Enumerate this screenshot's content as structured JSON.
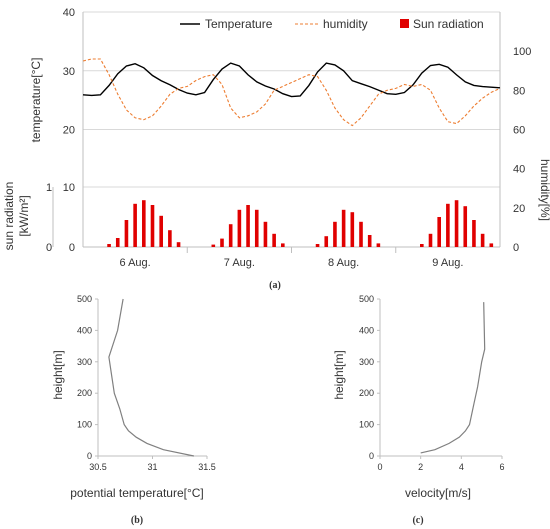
{
  "captions": {
    "a": "(a)",
    "b": "(b)",
    "c": "(c)"
  },
  "colors": {
    "temperature": "#000000",
    "humidity": "#ED7D31",
    "radiation": "#E00000",
    "profile": "#808080",
    "grid": "#d9d9d9",
    "axis": "#bfbfbf"
  },
  "chart_data": [
    {
      "type": "line",
      "panel": "(a)",
      "xlabel": "",
      "x_tick_labels": [
        "6 Aug.",
        "7 Aug.",
        "8 Aug.",
        "9 Aug."
      ],
      "x_hours": [
        0,
        2,
        4,
        6,
        8,
        10,
        12,
        14,
        16,
        18,
        20,
        22,
        24,
        26,
        28,
        30,
        32,
        34,
        36,
        38,
        40,
        42,
        44,
        46,
        48,
        50,
        52,
        54,
        56,
        58,
        60,
        62,
        64,
        66,
        68,
        70,
        72,
        74,
        76,
        78,
        80,
        82,
        84,
        86,
        88,
        90,
        92,
        94,
        96
      ],
      "legend": [
        "Temperature",
        "humidity",
        "Sun radiation"
      ],
      "legend_position": "top",
      "left_axis": {
        "label": "temperature[°C]",
        "ylim": [
          0,
          40
        ],
        "ticks": [
          20,
          30,
          40
        ]
      },
      "right_axis": {
        "label": "humidity[%]",
        "ylim": [
          0,
          120
        ],
        "ticks": [
          0,
          20,
          40,
          60,
          80,
          100
        ]
      },
      "radiation_axis": {
        "label": "sun radiation [kW/m²]",
        "ylim": [
          0,
          1
        ],
        "ticks": [
          0,
          1
        ]
      },
      "series": [
        {
          "name": "Temperature",
          "axis": "left",
          "values": [
            25.9,
            25.8,
            25.9,
            27.5,
            29.5,
            30.8,
            31.2,
            30.5,
            29.2,
            28.3,
            27.6,
            26.8,
            26.2,
            25.9,
            26.3,
            28.5,
            30.3,
            31.3,
            30.8,
            29.3,
            28.1,
            27.4,
            26.9,
            26.1,
            25.6,
            25.7,
            27.5,
            29.8,
            31.3,
            31.0,
            30.0,
            28.3,
            27.8,
            27.3,
            26.7,
            26.1,
            26.0,
            26.3,
            27.6,
            29.6,
            30.9,
            31.1,
            30.6,
            29.3,
            28.1,
            27.5,
            27.3,
            27.2,
            27.1
          ]
        },
        {
          "name": "humidity",
          "axis": "right",
          "values": [
            95,
            96,
            96,
            88,
            78,
            70,
            66,
            65,
            67,
            72,
            78,
            81,
            82,
            85,
            87,
            88,
            83,
            71,
            66,
            67,
            69,
            73,
            80,
            82,
            84,
            86,
            88,
            87,
            80,
            71,
            65,
            62,
            66,
            72,
            78,
            80,
            81,
            83,
            82,
            83,
            80,
            71,
            64,
            63,
            67,
            72,
            76,
            79,
            81
          ]
        },
        {
          "name": "Sun radiation",
          "axis": "radiation",
          "type": "bar",
          "values": [
            0,
            0,
            0,
            0.05,
            0.15,
            0.45,
            0.72,
            0.78,
            0.7,
            0.52,
            0.28,
            0.08,
            0,
            0,
            0,
            0.04,
            0.14,
            0.38,
            0.62,
            0.7,
            0.62,
            0.42,
            0.22,
            0.06,
            0,
            0,
            0,
            0.05,
            0.18,
            0.42,
            0.62,
            0.58,
            0.42,
            0.2,
            0.06,
            0,
            0,
            0,
            0,
            0.05,
            0.22,
            0.5,
            0.72,
            0.78,
            0.68,
            0.45,
            0.22,
            0.06,
            0
          ]
        }
      ]
    },
    {
      "type": "line",
      "panel": "(b)",
      "xlabel": "potential temperature[°C]",
      "ylabel": "height[m]",
      "xlim": [
        30.5,
        31.5
      ],
      "ylim": [
        0,
        500
      ],
      "x_ticks": [
        "30.5",
        "31",
        "31.5"
      ],
      "y_ticks": [
        "0",
        "100",
        "200",
        "300",
        "400",
        "500"
      ],
      "series": [
        {
          "x": [
            31.38,
            31.1,
            30.95,
            30.85,
            30.78,
            30.74,
            30.7,
            30.65,
            30.6,
            30.68,
            30.73
          ],
          "y": [
            0,
            20,
            40,
            60,
            80,
            100,
            150,
            200,
            315,
            400,
            500
          ]
        }
      ]
    },
    {
      "type": "line",
      "panel": "(c)",
      "xlabel": "velocity[m/s]",
      "ylabel": "height[m]",
      "xlim": [
        0,
        6
      ],
      "ylim": [
        0,
        500
      ],
      "x_ticks": [
        "0",
        "2",
        "4",
        "6"
      ],
      "y_ticks": [
        "0",
        "100",
        "200",
        "300",
        "400",
        "500"
      ],
      "series": [
        {
          "x": [
            2.0,
            2.7,
            3.4,
            3.9,
            4.2,
            4.4,
            4.6,
            4.8,
            5.0,
            5.15,
            5.1
          ],
          "y": [
            10,
            20,
            40,
            60,
            80,
            100,
            160,
            220,
            300,
            340,
            490
          ]
        }
      ]
    }
  ]
}
